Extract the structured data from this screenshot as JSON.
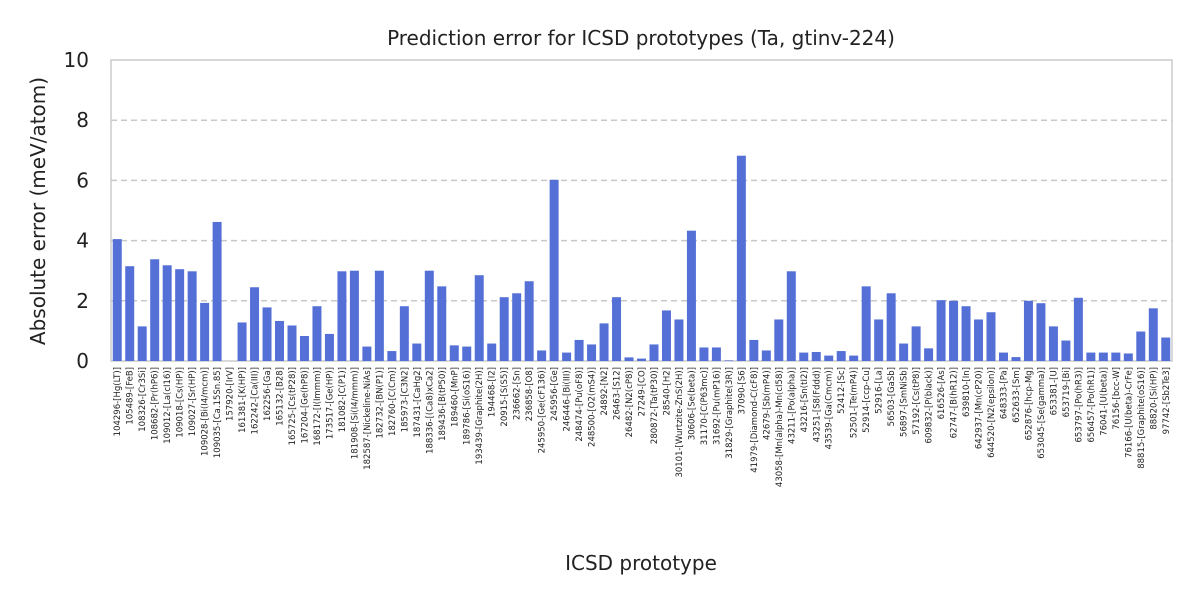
{
  "chart_data": {
    "type": "bar",
    "title": "Prediction error for ICSD prototypes (Ta, gtinv-224)",
    "xlabel": "ICSD prototype",
    "ylabel": "Absolute error (meV/atom)",
    "ylim": [
      0,
      10
    ],
    "yticks": [
      0,
      2,
      4,
      6,
      8,
      10
    ],
    "grid": "horizontal-dashed",
    "bar_color": "#5470d6",
    "categories": [
      "104296-[Hg(LT)]",
      "105489-[FeB]",
      "108326-[Cr3Si]",
      "108682-[Pr(hP6)]",
      "109012-[La(cI16)]",
      "109018-[Cs(HP)]",
      "109027-[Sr(HP)]",
      "109028-[Bi(I4/mcm)]",
      "109035-[Ca.15Sn.85]",
      "157920-[IrV]",
      "161381-[K(HP)]",
      "162242-[Ca(III)]",
      "162256-[Ga]",
      "165132-[B28]",
      "165725-[Cs(tP28)]",
      "167204-[Ge(hP8)]",
      "168172-[I(Immm)]",
      "173517-[Ge(HP)]",
      "181082-[C(P1)]",
      "181908-[Si(I4/mmm)]",
      "182587-[Nickeline-NiAs]",
      "182732-[BN(P1)]",
      "182760-[C(Cm)]",
      "185973-[C3N2]",
      "187431-[CaHg2]",
      "188336-[(Ca8)xCa2]",
      "189436-[B(tP50)]",
      "189460-[MnP]",
      "189786-[Si(oS16)]",
      "193439-[Graphite(2H)]",
      "194468-[I2]",
      "20915-[S(S5)]",
      "236662-[Sn]",
      "236858-[O8]",
      "245950-[Ge(cF136)]",
      "245956-[Ge]",
      "246446-[Bi(III)]",
      "248474-[Pu(oF8)]",
      "248500-[O2(mS4)]",
      "24892-[N2]",
      "26463-[S12]",
      "26482-[N2(cP8)]",
      "27249-[CO]",
      "280872-[Ta(tP30)]",
      "28540-[H2]",
      "30101-[Wurtzite-ZnS(2H)]",
      "30606-[Se(beta)]",
      "31170-[C(P63mc)]",
      "31692-[Pu(mP16)]",
      "31829-[Graphite(3R)]",
      "37090-[S6]",
      "41979-[Diamond-C(cF8)]",
      "42679-[Sb(mP4)]",
      "43058-[Mn(alpha)-Mn(cI58)]",
      "43211-[Po(alpha)]",
      "43216-[Sn(tI2)]",
      "43251-[S8(Fddd)]",
      "43539-[Ga(Cmcm)]",
      "52412-[Sc]",
      "52501-[Te(mP4)]",
      "52914-[ccp-Cu]",
      "52916-[La]",
      "56503-[GaSb]",
      "56897-[SmNiSb]",
      "57192-[Cs(tP8)]",
      "609832-[P(black)]",
      "616526-[As]",
      "62747-[B(hR12)]",
      "639810-[In]",
      "642937-[Mn(cP20)]",
      "644520-[N2(epsilon)]",
      "648333-[Pa]",
      "652633-[Sm]",
      "652876-[hcp-Mg]",
      "653045-[Se(gamma)]",
      "653381-[U]",
      "653719-[Bi]",
      "653797-[Po(hR3)]",
      "656457-[Po(hR1)]",
      "76041-[U(beta)]",
      "76156-[bcc-W]",
      "76166-[U(beta)-CrFe]",
      "88815-[Graphite(oS16)]",
      "88820-[Si(HP)]",
      "97742-[Sb2Te3]"
    ],
    "values": [
      4.05,
      3.15,
      1.15,
      3.38,
      3.18,
      3.05,
      2.98,
      1.93,
      4.62,
      0.0,
      1.28,
      2.45,
      1.78,
      1.33,
      1.18,
      0.83,
      1.82,
      0.9,
      2.98,
      3.0,
      0.48,
      3.0,
      0.33,
      1.82,
      0.58,
      3.0,
      2.48,
      0.52,
      0.48,
      2.85,
      0.58,
      2.12,
      2.25,
      2.65,
      0.35,
      6.02,
      0.28,
      0.7,
      0.55,
      1.25,
      2.12,
      0.12,
      0.08,
      0.55,
      1.68,
      1.38,
      4.33,
      0.45,
      0.45,
      0.02,
      6.82,
      0.7,
      0.35,
      1.38,
      2.98,
      0.28,
      0.3,
      0.18,
      0.33,
      0.18,
      2.48,
      1.38,
      2.25,
      0.58,
      1.15,
      0.42,
      2.02,
      2.0,
      1.82,
      1.38,
      1.62,
      0.28,
      0.13,
      2.0,
      1.92,
      1.15,
      0.68,
      2.1,
      0.28,
      0.28,
      0.28,
      0.25,
      0.98,
      1.75,
      0.78
    ]
  }
}
